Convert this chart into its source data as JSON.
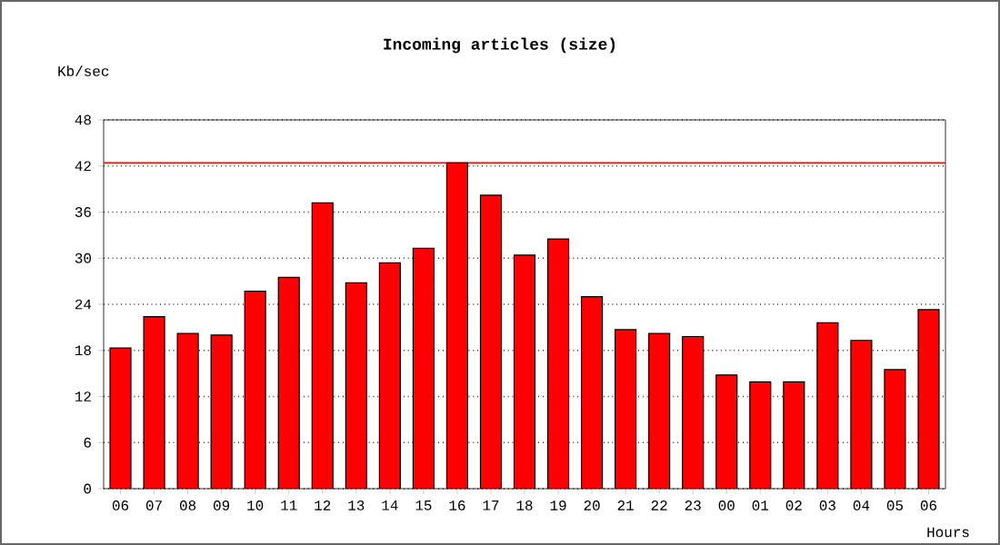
{
  "chart_data": {
    "type": "bar",
    "title": "Incoming articles (size)",
    "ylabel": "Kb/sec",
    "xlabel": "Hours",
    "categories": [
      "06",
      "07",
      "08",
      "09",
      "10",
      "11",
      "12",
      "13",
      "14",
      "15",
      "16",
      "17",
      "18",
      "19",
      "20",
      "21",
      "22",
      "23",
      "00",
      "01",
      "02",
      "03",
      "04",
      "05",
      "06"
    ],
    "values": [
      18.3,
      22.4,
      20.2,
      20.0,
      25.7,
      27.5,
      37.2,
      26.8,
      29.4,
      31.3,
      42.4,
      38.2,
      30.4,
      32.5,
      25.0,
      20.7,
      20.2,
      19.8,
      14.8,
      13.9,
      13.9,
      21.6,
      19.3,
      15.5,
      23.3
    ],
    "color": "#ff0000",
    "ylim": [
      0,
      48
    ],
    "yticks": [
      0,
      6,
      12,
      18,
      24,
      30,
      36,
      42,
      48
    ],
    "grid": "y",
    "ref_lines": [
      {
        "axis": "y",
        "value": 42.4,
        "color": "#ff0000"
      }
    ]
  }
}
